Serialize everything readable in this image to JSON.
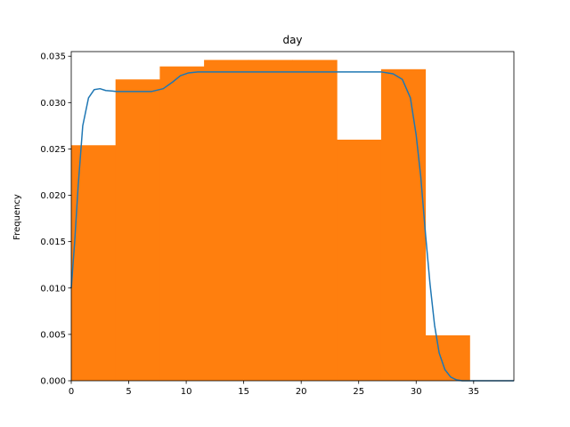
{
  "chart_data": {
    "type": "bar",
    "title": "day",
    "xlabel": "",
    "ylabel": "Frequency",
    "xlim": [
      0,
      38.5
    ],
    "ylim": [
      0,
      0.0355
    ],
    "xticks": [
      0,
      5,
      10,
      15,
      20,
      25,
      30,
      35
    ],
    "yticks": [
      0.0,
      0.005,
      0.01,
      0.015,
      0.02,
      0.025,
      0.03,
      0.035
    ],
    "ytick_labels": [
      "0.000",
      "0.005",
      "0.010",
      "0.015",
      "0.020",
      "0.025",
      "0.030",
      "0.035"
    ],
    "grid": false,
    "histogram": {
      "color": "#ff7f0e",
      "bins": [
        {
          "x0": 0.0,
          "x1": 3.85,
          "value": 0.0254
        },
        {
          "x0": 3.85,
          "x1": 7.7,
          "value": 0.0325
        },
        {
          "x0": 7.7,
          "x1": 11.55,
          "value": 0.0339
        },
        {
          "x0": 11.55,
          "x1": 15.4,
          "value": 0.0346
        },
        {
          "x0": 15.4,
          "x1": 19.25,
          "value": 0.0346
        },
        {
          "x0": 19.25,
          "x1": 23.1,
          "value": 0.0346
        },
        {
          "x0": 23.1,
          "x1": 26.95,
          "value": 0.026
        },
        {
          "x0": 26.95,
          "x1": 30.8,
          "value": 0.0336
        },
        {
          "x0": 30.8,
          "x1": 34.65,
          "value": 0.0049
        }
      ]
    },
    "density_line": {
      "color": "#1f77b4",
      "points": [
        [
          0.0,
          0.01
        ],
        [
          0.3,
          0.015
        ],
        [
          0.6,
          0.021
        ],
        [
          1.0,
          0.0275
        ],
        [
          1.5,
          0.0305
        ],
        [
          2.0,
          0.0314
        ],
        [
          2.5,
          0.0315
        ],
        [
          3.0,
          0.0313
        ],
        [
          4.0,
          0.0312
        ],
        [
          5.0,
          0.0312
        ],
        [
          6.0,
          0.0312
        ],
        [
          7.0,
          0.0312
        ],
        [
          8.0,
          0.0315
        ],
        [
          8.8,
          0.0322
        ],
        [
          9.5,
          0.0329
        ],
        [
          10.2,
          0.0332
        ],
        [
          11.0,
          0.0333
        ],
        [
          13.0,
          0.0333
        ],
        [
          16.0,
          0.0333
        ],
        [
          20.0,
          0.0333
        ],
        [
          24.0,
          0.0333
        ],
        [
          27.0,
          0.0333
        ],
        [
          28.0,
          0.0331
        ],
        [
          28.8,
          0.0325
        ],
        [
          29.5,
          0.0305
        ],
        [
          30.0,
          0.0265
        ],
        [
          30.4,
          0.022
        ],
        [
          30.8,
          0.016
        ],
        [
          31.2,
          0.0105
        ],
        [
          31.6,
          0.006
        ],
        [
          32.0,
          0.003
        ],
        [
          32.5,
          0.0012
        ],
        [
          33.0,
          0.0004
        ],
        [
          33.5,
          0.0001
        ],
        [
          34.0,
          0.0
        ],
        [
          36.0,
          0.0
        ],
        [
          38.5,
          0.0
        ]
      ]
    }
  }
}
